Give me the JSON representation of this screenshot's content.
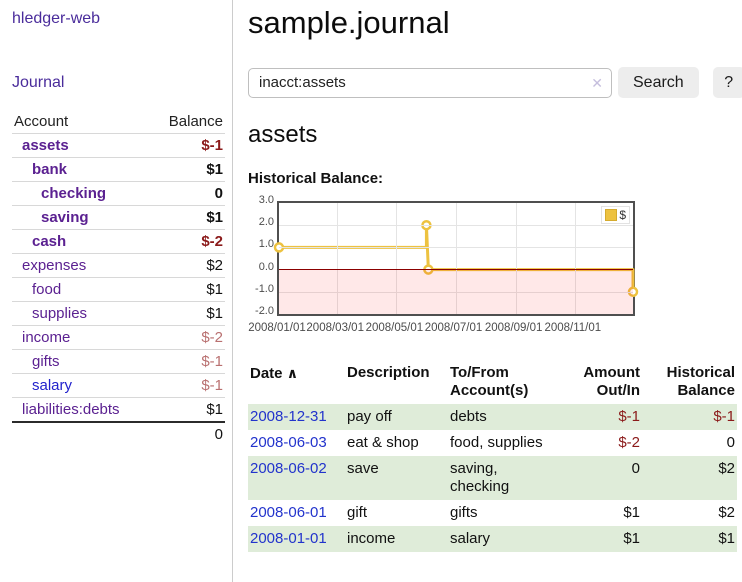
{
  "sidebar": {
    "brand": "hledger-web",
    "journal_link": "Journal",
    "accounts": {
      "header_account": "Account",
      "header_balance": "Balance",
      "rows": [
        {
          "name": "assets",
          "balance": "$-1"
        },
        {
          "name": "bank",
          "balance": "$1"
        },
        {
          "name": "checking",
          "balance": "0"
        },
        {
          "name": "saving",
          "balance": "$1"
        },
        {
          "name": "cash",
          "balance": "$-2"
        },
        {
          "name": "expenses",
          "balance": "$2"
        },
        {
          "name": "food",
          "balance": "$1"
        },
        {
          "name": "supplies",
          "balance": "$1"
        },
        {
          "name": "income",
          "balance": "$-2"
        },
        {
          "name": "gifts",
          "balance": "$-1"
        },
        {
          "name": "salary",
          "balance": "$-1"
        },
        {
          "name": "liabilities:debts",
          "balance": "$1"
        }
      ],
      "total": "0"
    }
  },
  "main": {
    "title": "sample.journal",
    "search": {
      "value": "inacct:assets",
      "clear_icon": "✕",
      "search_button": "Search",
      "help_button": "?"
    },
    "account_heading": "assets",
    "chart_label": "Historical Balance:",
    "register": {
      "headers": {
        "date": "Date",
        "sort_arrow": "∧",
        "description": "Description",
        "accounts": "To/From Account(s)",
        "amount": "Amount Out/In",
        "balance": "Historical Balance"
      },
      "rows": [
        {
          "date": "2008-12-31",
          "description": "pay off",
          "accounts": "debts",
          "amount": "$-1",
          "balance": "$-1"
        },
        {
          "date": "2008-06-03",
          "description": "eat & shop",
          "accounts": "food, supplies",
          "amount": "$-2",
          "balance": "0"
        },
        {
          "date": "2008-06-02",
          "description": "save",
          "accounts": "saving, checking",
          "amount": "0",
          "balance": "$2"
        },
        {
          "date": "2008-06-01",
          "description": "gift",
          "accounts": "gifts",
          "amount": "$1",
          "balance": "$2"
        },
        {
          "date": "2008-01-01",
          "description": "income",
          "accounts": "salary",
          "amount": "$1",
          "balance": "$1"
        }
      ]
    }
  },
  "chart_data": {
    "type": "line",
    "step": true,
    "title": "Historical Balance",
    "xlim": [
      0,
      365
    ],
    "ylim": [
      -2,
      3
    ],
    "grid": true,
    "legend_position": "top-right",
    "series": [
      {
        "name": "$",
        "color": "#edc240",
        "points": [
          [
            0,
            1
          ],
          [
            152,
            1
          ],
          [
            152,
            2
          ],
          [
            154,
            0
          ],
          [
            365,
            0
          ],
          [
            365,
            -1
          ]
        ],
        "markers": [
          [
            0,
            1
          ],
          [
            152,
            2
          ],
          [
            154,
            0
          ],
          [
            365,
            -1
          ]
        ]
      }
    ],
    "yticks": [
      {
        "v": 3,
        "label": "3.0"
      },
      {
        "v": 2,
        "label": "2.0"
      },
      {
        "v": 1,
        "label": "1.0"
      },
      {
        "v": 0,
        "label": "0.0"
      },
      {
        "v": -1,
        "label": "-1.0"
      },
      {
        "v": -2,
        "label": "-2.0"
      }
    ],
    "xticks": [
      {
        "v": 0,
        "label": "2008/01/01"
      },
      {
        "v": 60,
        "label": "2008/03/01"
      },
      {
        "v": 121,
        "label": "2008/05/01"
      },
      {
        "v": 182,
        "label": "2008/07/01"
      },
      {
        "v": 244,
        "label": "2008/09/01"
      },
      {
        "v": 305,
        "label": "2008/11/01"
      }
    ],
    "negative_region_color": "rgba(255,0,0,0.09)",
    "zero_line_color": "#8b0000",
    "marker_fill": "#ffffff"
  }
}
